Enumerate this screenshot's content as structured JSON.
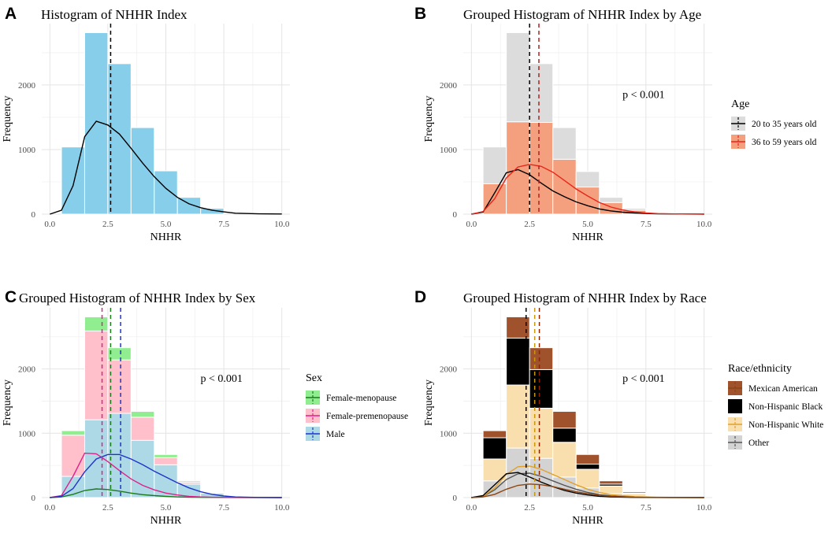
{
  "chart_data": [
    {
      "type": "bar",
      "tag": "A",
      "title": "Histogram of NHHR Index",
      "xlabel": "NHHR",
      "ylabel": "Frequency",
      "xlim": [
        -0.35,
        10.35
      ],
      "ylim": [
        0,
        2950
      ],
      "xticks": [
        0,
        2.5,
        5,
        7.5,
        10
      ],
      "xtick_labels": [
        "0.0",
        "2.5",
        "5.0",
        "7.5",
        "10.0"
      ],
      "yticks": [
        0,
        1000,
        2000
      ],
      "ytick_labels": [
        "0",
        "1000",
        "2000"
      ],
      "bin_width": 1,
      "bin_starts": [
        0.5,
        1.5,
        2.5,
        3.5,
        4.5,
        5.5,
        6.5
      ],
      "series": [
        {
          "name": "All",
          "color": "#87ceeb",
          "values": [
            1040,
            2810,
            2330,
            1340,
            670,
            260,
            90
          ]
        }
      ],
      "density_lines": [
        {
          "name": "All",
          "color": "#000000",
          "x": [
            0,
            0.5,
            1,
            1.5,
            2,
            2.5,
            3,
            3.5,
            4,
            4.5,
            5,
            5.5,
            6,
            6.5,
            7,
            7.5,
            8,
            9,
            10
          ],
          "y": [
            0,
            60,
            440,
            1200,
            1440,
            1380,
            1240,
            1020,
            790,
            580,
            400,
            260,
            160,
            100,
            60,
            35,
            15,
            5,
            2
          ]
        }
      ],
      "vlines": [
        {
          "x": 2.62,
          "color": "#000000"
        }
      ],
      "annotation": "",
      "legend": null
    },
    {
      "type": "bar",
      "tag": "B",
      "title": "Grouped Histogram of NHHR Index by Age",
      "xlabel": "NHHR",
      "ylabel": "Frequency",
      "xlim": [
        -0.35,
        10.35
      ],
      "ylim": [
        0,
        2950
      ],
      "xticks": [
        0,
        2.5,
        5,
        7.5,
        10
      ],
      "xtick_labels": [
        "0.0",
        "2.5",
        "5.0",
        "7.5",
        "10.0"
      ],
      "yticks": [
        0,
        1000,
        2000
      ],
      "ytick_labels": [
        "0",
        "1000",
        "2000"
      ],
      "bin_width": 1,
      "bin_starts": [
        0.5,
        1.5,
        2.5,
        3.5,
        4.5,
        5.5,
        6.5
      ],
      "series": [
        {
          "name": "36 to 59 years old",
          "color": "#f4a07f",
          "values": [
            470,
            1430,
            1420,
            850,
            420,
            180,
            60
          ]
        },
        {
          "name": "20 to 35 years old",
          "color": "#dcdcdc",
          "values": [
            570,
            1380,
            910,
            490,
            240,
            80,
            30
          ]
        }
      ],
      "density_lines": [
        {
          "name": "20 to 35 years old",
          "color": "#000000",
          "x": [
            0,
            0.5,
            1,
            1.5,
            2,
            2.5,
            3,
            3.5,
            4,
            4.5,
            5,
            5.5,
            6,
            6.5,
            7,
            7.5,
            8,
            9,
            10
          ],
          "y": [
            0,
            30,
            330,
            640,
            690,
            610,
            480,
            360,
            270,
            190,
            130,
            80,
            50,
            30,
            18,
            10,
            5,
            2,
            0
          ]
        },
        {
          "name": "36 to 59 years old",
          "color": "#e8261a",
          "x": [
            0,
            0.5,
            1,
            1.5,
            2,
            2.5,
            3,
            3.5,
            4,
            4.5,
            5,
            5.5,
            6,
            6.5,
            7,
            7.5,
            8,
            9,
            10
          ],
          "y": [
            0,
            40,
            240,
            560,
            730,
            770,
            740,
            650,
            520,
            390,
            280,
            180,
            110,
            65,
            35,
            18,
            8,
            3,
            0
          ]
        }
      ],
      "vlines": [
        {
          "x": 2.5,
          "color": "#000000"
        },
        {
          "x": 2.9,
          "color": "#b22222"
        }
      ],
      "annotation": "p < 0.001",
      "legend": {
        "title": "Age",
        "items": [
          {
            "label": "20 to 35 years old",
            "fill": "#dcdcdc",
            "line": "#000000"
          },
          {
            "label": "36 to 59 years old",
            "fill": "#f4a07f",
            "line": "#e8261a"
          }
        ]
      }
    },
    {
      "type": "bar",
      "tag": "C",
      "title": "Grouped Histogram of NHHR Index by Sex",
      "xlabel": "NHHR",
      "ylabel": "Frequency",
      "xlim": [
        -0.35,
        10.35
      ],
      "ylim": [
        0,
        2950
      ],
      "xticks": [
        0,
        2.5,
        5,
        7.5,
        10
      ],
      "xtick_labels": [
        "0.0",
        "2.5",
        "5.0",
        "7.5",
        "10.0"
      ],
      "yticks": [
        0,
        1000,
        2000
      ],
      "ytick_labels": [
        "0",
        "1000",
        "2000"
      ],
      "bin_width": 1,
      "bin_starts": [
        0.5,
        1.5,
        2.5,
        3.5,
        4.5,
        5.5,
        6.5
      ],
      "series": [
        {
          "name": "Male",
          "color": "#add8e6",
          "values": [
            330,
            1210,
            1310,
            890,
            510,
            210,
            70
          ]
        },
        {
          "name": "Female-premenopause",
          "color": "#ffc0cb",
          "values": [
            640,
            1380,
            830,
            360,
            110,
            30,
            10
          ]
        },
        {
          "name": "Female-menopause",
          "color": "#90ee90",
          "values": [
            70,
            220,
            190,
            90,
            50,
            20,
            10
          ]
        }
      ],
      "density_lines": [
        {
          "name": "Female-menopause",
          "color": "#1b7a1b",
          "x": [
            0,
            0.5,
            1,
            1.5,
            2,
            2.5,
            3,
            3.5,
            4,
            4.5,
            5,
            5.5,
            6,
            7,
            8,
            10
          ],
          "y": [
            0,
            10,
            50,
            110,
            135,
            125,
            100,
            70,
            45,
            30,
            18,
            10,
            5,
            2,
            1,
            0
          ]
        },
        {
          "name": "Female-premenopause",
          "color": "#e0218a",
          "x": [
            0,
            0.5,
            1,
            1.5,
            2,
            2.5,
            3,
            3.5,
            4,
            4.5,
            5,
            5.5,
            6,
            6.5,
            7,
            8,
            10
          ],
          "y": [
            0,
            30,
            330,
            690,
            680,
            560,
            420,
            290,
            190,
            120,
            70,
            40,
            20,
            10,
            5,
            2,
            0
          ]
        },
        {
          "name": "Male",
          "color": "#1f35c8",
          "x": [
            0,
            0.5,
            1,
            1.5,
            2,
            2.5,
            3,
            3.5,
            4,
            4.5,
            5,
            5.5,
            6,
            6.5,
            7,
            7.5,
            8,
            9,
            10
          ],
          "y": [
            0,
            20,
            140,
            400,
            600,
            670,
            670,
            600,
            510,
            410,
            320,
            230,
            150,
            90,
            50,
            25,
            10,
            3,
            0
          ]
        }
      ],
      "vlines": [
        {
          "x": 2.25,
          "color": "#e0218a"
        },
        {
          "x": 2.62,
          "color": "#1b7a1b"
        },
        {
          "x": 3.05,
          "color": "#1f35c8"
        }
      ],
      "annotation": "p < 0.001",
      "legend": {
        "title": "Sex",
        "items": [
          {
            "label": "Female-menopause",
            "fill": "#90ee90",
            "line": "#1b7a1b"
          },
          {
            "label": "Female-premenopause",
            "fill": "#ffc0cb",
            "line": "#e0218a"
          },
          {
            "label": "Male",
            "fill": "#add8e6",
            "line": "#1f35c8"
          }
        ]
      }
    },
    {
      "type": "bar",
      "tag": "D",
      "title": "Grouped Histogram of NHHR Index by Race",
      "xlabel": "NHHR",
      "ylabel": "Frequency",
      "xlim": [
        -0.35,
        10.35
      ],
      "ylim": [
        0,
        2950
      ],
      "xticks": [
        0,
        2.5,
        5,
        7.5,
        10
      ],
      "xtick_labels": [
        "0.0",
        "2.5",
        "5.0",
        "7.5",
        "10.0"
      ],
      "yticks": [
        0,
        1000,
        2000
      ],
      "ytick_labels": [
        "0",
        "1000",
        "2000"
      ],
      "bin_width": 1,
      "bin_starts": [
        0.5,
        1.5,
        2.5,
        3.5,
        4.5,
        5.5,
        6.5
      ],
      "series": [
        {
          "name": "Other",
          "color": "#d3d3d3",
          "values": [
            260,
            770,
            610,
            320,
            150,
            60,
            20
          ]
        },
        {
          "name": "Non-Hispanic White",
          "color": "#f9deae",
          "values": [
            340,
            980,
            780,
            540,
            290,
            120,
            40
          ]
        },
        {
          "name": "Non-Hispanic Black",
          "color": "#000000",
          "values": [
            330,
            730,
            600,
            220,
            80,
            30,
            10
          ]
        },
        {
          "name": "Mexican American",
          "color": "#a0522d",
          "values": [
            110,
            330,
            340,
            260,
            150,
            50,
            20
          ]
        }
      ],
      "density_lines": [
        {
          "name": "Other",
          "color": "#555555",
          "x": [
            0,
            0.5,
            1,
            1.5,
            2,
            2.5,
            3,
            3.5,
            4,
            4.5,
            5,
            5.5,
            6,
            7,
            8,
            10
          ],
          "y": [
            0,
            20,
            120,
            280,
            370,
            380,
            330,
            260,
            190,
            130,
            80,
            45,
            25,
            8,
            3,
            0
          ]
        },
        {
          "name": "Non-Hispanic White",
          "color": "#e0a030",
          "x": [
            0,
            0.5,
            1,
            1.5,
            2,
            2.5,
            3,
            3.5,
            4,
            4.5,
            5,
            5.5,
            6,
            7,
            8,
            10
          ],
          "y": [
            0,
            20,
            150,
            360,
            480,
            490,
            440,
            360,
            280,
            200,
            130,
            80,
            45,
            15,
            5,
            0
          ]
        },
        {
          "name": "Non-Hispanic Black",
          "color": "#000000",
          "x": [
            0,
            0.5,
            1,
            1.5,
            2,
            2.5,
            3,
            3.5,
            4,
            4.5,
            5,
            5.5,
            6,
            7,
            8,
            10
          ],
          "y": [
            0,
            30,
            200,
            370,
            390,
            320,
            240,
            170,
            110,
            70,
            40,
            20,
            10,
            3,
            1,
            0
          ]
        },
        {
          "name": "Mexican American",
          "color": "#8b4513",
          "x": [
            0,
            0.5,
            1,
            1.5,
            2,
            2.5,
            3,
            3.5,
            4,
            4.5,
            5,
            5.5,
            6,
            7,
            8,
            10
          ],
          "y": [
            0,
            10,
            50,
            130,
            190,
            210,
            200,
            170,
            130,
            90,
            60,
            35,
            20,
            6,
            2,
            0
          ]
        }
      ],
      "vlines": [
        {
          "x": 2.35,
          "color": "#000000"
        },
        {
          "x": 2.72,
          "color": "#c8960a"
        },
        {
          "x": 2.92,
          "color": "#8b2500"
        }
      ],
      "annotation": "p < 0.001",
      "legend": {
        "title": "Race/ethnicity",
        "items": [
          {
            "label": "Mexican American",
            "fill": "#a0522d",
            "line": "#8b4513"
          },
          {
            "label": "Non-Hispanic Black",
            "fill": "#000000",
            "line": "#000000"
          },
          {
            "label": "Non-Hispanic White",
            "fill": "#f9deae",
            "line": "#e0a030"
          },
          {
            "label": "Other",
            "fill": "#d3d3d3",
            "line": "#555555"
          }
        ]
      }
    }
  ]
}
